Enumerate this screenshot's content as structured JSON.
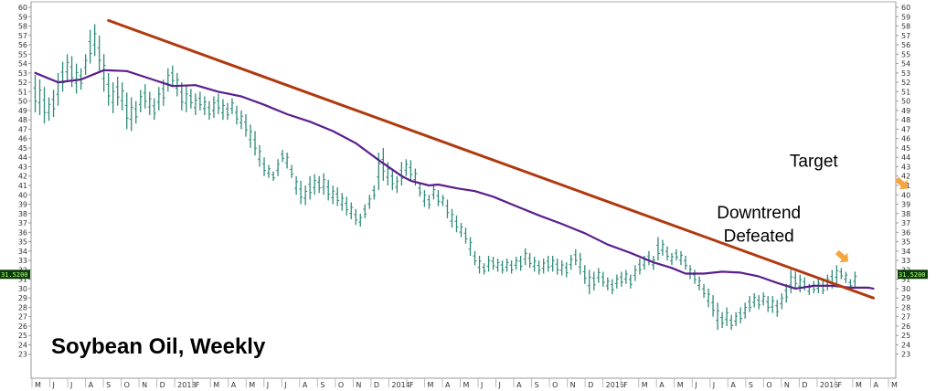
{
  "chart_data": {
    "type": "ohlc-bar",
    "title": "Soybean Oil, Weekly",
    "ylim": [
      22,
      60
    ],
    "yticks": [
      23,
      24,
      25,
      26,
      27,
      28,
      29,
      30,
      31,
      32,
      33,
      34,
      35,
      36,
      37,
      38,
      39,
      40,
      41,
      42,
      43,
      44,
      45,
      46,
      47,
      48,
      49,
      50,
      51,
      52,
      53,
      54,
      55,
      56,
      57,
      58,
      59,
      60
    ],
    "grid": false,
    "last_price_label": "31.5200",
    "last_price": 31.52,
    "x_ticks": [
      "M",
      "J",
      "J",
      "A",
      "S",
      "O",
      "N",
      "D",
      "2013",
      "F",
      "M",
      "A",
      "M",
      "J",
      "J",
      "A",
      "S",
      "O",
      "N",
      "D",
      "2014",
      "F",
      "M",
      "A",
      "M",
      "J",
      "J",
      "A",
      "S",
      "O",
      "N",
      "D",
      "2015",
      "F",
      "M",
      "A",
      "M",
      "J",
      "J",
      "A",
      "S",
      "O",
      "N",
      "D",
      "2016",
      "F",
      "M",
      "A",
      "M"
    ],
    "weekly_bars": [
      [
        52.8,
        48.8
      ],
      [
        52.3,
        48.5
      ],
      [
        51.5,
        47.6
      ],
      [
        50.4,
        47.9
      ],
      [
        51.2,
        48.3
      ],
      [
        53.0,
        49.5
      ],
      [
        54.2,
        51.0
      ],
      [
        55.0,
        52.1
      ],
      [
        54.8,
        51.5
      ],
      [
        54.0,
        50.8
      ],
      [
        53.5,
        51.2
      ],
      [
        55.0,
        52.8
      ],
      [
        57.6,
        54.0
      ],
      [
        58.2,
        54.8
      ],
      [
        57.0,
        53.2
      ],
      [
        55.0,
        51.0
      ],
      [
        53.0,
        49.5
      ],
      [
        52.0,
        48.7
      ],
      [
        52.6,
        49.5
      ],
      [
        52.0,
        49.0
      ],
      [
        50.9,
        47.0
      ],
      [
        50.4,
        46.8
      ],
      [
        50.0,
        47.6
      ],
      [
        51.2,
        48.8
      ],
      [
        51.8,
        49.2
      ],
      [
        51.0,
        48.5
      ],
      [
        50.3,
        48.0
      ],
      [
        51.5,
        49.0
      ],
      [
        52.3,
        49.5
      ],
      [
        53.5,
        51.0
      ],
      [
        53.8,
        51.5
      ],
      [
        53.0,
        50.5
      ],
      [
        52.0,
        49.0
      ],
      [
        51.6,
        48.8
      ],
      [
        51.3,
        49.2
      ],
      [
        50.8,
        48.5
      ],
      [
        51.0,
        49.0
      ],
      [
        50.5,
        48.5
      ],
      [
        50.0,
        48.0
      ],
      [
        50.5,
        48.2
      ],
      [
        50.8,
        48.6
      ],
      [
        50.2,
        48.0
      ],
      [
        49.8,
        48.0
      ],
      [
        50.3,
        48.6
      ],
      [
        49.5,
        47.5
      ],
      [
        49.0,
        47.0
      ],
      [
        48.6,
        46.2
      ],
      [
        47.5,
        45.0
      ],
      [
        46.8,
        44.2
      ],
      [
        45.3,
        43.0
      ],
      [
        44.0,
        42.0
      ],
      [
        43.2,
        41.8
      ],
      [
        42.5,
        41.5
      ],
      [
        43.8,
        42.0
      ],
      [
        44.8,
        43.5
      ],
      [
        44.5,
        42.8
      ],
      [
        43.2,
        41.8
      ],
      [
        42.0,
        40.0
      ],
      [
        41.5,
        39.0
      ],
      [
        41.0,
        38.9
      ],
      [
        42.0,
        39.5
      ],
      [
        42.2,
        40.0
      ],
      [
        42.0,
        40.2
      ],
      [
        42.3,
        40.0
      ],
      [
        41.6,
        39.4
      ],
      [
        41.0,
        39.0
      ],
      [
        40.8,
        38.8
      ],
      [
        40.2,
        38.3
      ],
      [
        39.8,
        37.8
      ],
      [
        39.2,
        37.4
      ],
      [
        38.5,
        36.8
      ],
      [
        38.0,
        36.6
      ],
      [
        39.0,
        37.5
      ],
      [
        40.0,
        38.5
      ],
      [
        41.0,
        39.5
      ],
      [
        44.5,
        40.5
      ],
      [
        45.0,
        41.5
      ],
      [
        43.5,
        41.0
      ],
      [
        42.8,
        40.5
      ],
      [
        42.0,
        40.2
      ],
      [
        43.5,
        41.0
      ],
      [
        43.8,
        42.0
      ],
      [
        43.7,
        41.5
      ],
      [
        42.8,
        41.0
      ],
      [
        41.2,
        39.8
      ],
      [
        40.5,
        38.7
      ],
      [
        40.0,
        38.5
      ],
      [
        41.0,
        39.5
      ],
      [
        40.5,
        38.8
      ],
      [
        40.0,
        38.8
      ],
      [
        39.5,
        37.5
      ],
      [
        38.5,
        36.5
      ],
      [
        37.8,
        36.0
      ],
      [
        37.0,
        35.5
      ],
      [
        36.5,
        34.8
      ],
      [
        35.5,
        33.5
      ],
      [
        34.0,
        32.5
      ],
      [
        33.5,
        31.6
      ],
      [
        32.7,
        31.5
      ],
      [
        33.5,
        31.8
      ],
      [
        33.4,
        32.0
      ],
      [
        33.2,
        31.8
      ],
      [
        33.0,
        31.6
      ],
      [
        33.2,
        31.8
      ],
      [
        33.0,
        31.6
      ],
      [
        33.4,
        32.0
      ],
      [
        33.5,
        31.9
      ],
      [
        34.3,
        32.5
      ],
      [
        33.8,
        32.2
      ],
      [
        33.4,
        31.8
      ],
      [
        33.0,
        31.5
      ],
      [
        33.2,
        31.6
      ],
      [
        33.5,
        31.8
      ],
      [
        33.5,
        31.8
      ],
      [
        33.2,
        31.5
      ],
      [
        33.0,
        31.4
      ],
      [
        32.8,
        31.2
      ],
      [
        33.6,
        32.0
      ],
      [
        34.2,
        32.5
      ],
      [
        33.8,
        31.5
      ],
      [
        32.5,
        30.5
      ],
      [
        32.0,
        29.4
      ],
      [
        31.8,
        29.8
      ],
      [
        32.2,
        30.6
      ],
      [
        31.8,
        30.2
      ],
      [
        31.2,
        29.8
      ],
      [
        31.0,
        29.4
      ],
      [
        31.5,
        30.0
      ],
      [
        31.8,
        30.2
      ],
      [
        32.0,
        30.5
      ],
      [
        31.5,
        30.0
      ],
      [
        32.5,
        30.8
      ],
      [
        33.2,
        31.5
      ],
      [
        33.5,
        32.0
      ],
      [
        34.0,
        32.5
      ],
      [
        33.5,
        32.0
      ],
      [
        35.5,
        33.0
      ],
      [
        35.2,
        33.5
      ],
      [
        34.5,
        33.0
      ],
      [
        33.8,
        32.5
      ],
      [
        34.2,
        33.0
      ],
      [
        34.0,
        32.5
      ],
      [
        33.5,
        32.0
      ],
      [
        32.5,
        31.0
      ],
      [
        32.0,
        30.5
      ],
      [
        31.3,
        29.8
      ],
      [
        30.5,
        29.0
      ],
      [
        30.0,
        28.0
      ],
      [
        29.3,
        27.0
      ],
      [
        28.5,
        25.6
      ],
      [
        27.5,
        25.8
      ],
      [
        28.0,
        26.0
      ],
      [
        27.2,
        25.6
      ],
      [
        27.5,
        26.0
      ],
      [
        28.0,
        26.3
      ],
      [
        28.5,
        26.8
      ],
      [
        29.2,
        27.5
      ],
      [
        29.5,
        28.0
      ],
      [
        29.3,
        27.8
      ],
      [
        29.6,
        28.2
      ],
      [
        29.2,
        27.5
      ],
      [
        29.2,
        27.4
      ],
      [
        28.8,
        27.0
      ],
      [
        29.5,
        27.8
      ],
      [
        30.5,
        28.5
      ],
      [
        32.0,
        29.5
      ],
      [
        31.8,
        30.0
      ],
      [
        31.5,
        29.6
      ],
      [
        31.2,
        29.8
      ],
      [
        30.5,
        29.3
      ],
      [
        30.8,
        29.5
      ],
      [
        31.0,
        29.5
      ],
      [
        30.8,
        29.4
      ],
      [
        31.5,
        29.8
      ],
      [
        32.0,
        30.0
      ],
      [
        32.5,
        30.5
      ],
      [
        32.2,
        31.0
      ],
      [
        31.8,
        30.6
      ],
      [
        31.0,
        30.0
      ],
      [
        31.8,
        30.2
      ]
    ],
    "series": [
      {
        "name": "",
        "type": "moving-average",
        "color": "#5a1e8c",
        "points": [
          [
            0,
            53.0
          ],
          [
            5,
            52.0
          ],
          [
            10,
            52.3
          ],
          [
            15,
            53.3
          ],
          [
            20,
            53.2
          ],
          [
            25,
            52.4
          ],
          [
            30,
            51.6
          ],
          [
            35,
            51.7
          ],
          [
            40,
            51.0
          ],
          [
            45,
            50.5
          ],
          [
            50,
            49.6
          ],
          [
            55,
            48.6
          ],
          [
            60,
            47.8
          ],
          [
            65,
            46.8
          ],
          [
            70,
            45.5
          ],
          [
            75,
            43.7
          ],
          [
            80,
            42.0
          ],
          [
            82,
            41.5
          ],
          [
            86,
            41.0
          ],
          [
            88,
            41.1
          ],
          [
            92,
            40.7
          ],
          [
            96,
            40.4
          ],
          [
            100,
            39.8
          ],
          [
            105,
            38.8
          ],
          [
            110,
            37.8
          ],
          [
            115,
            36.9
          ],
          [
            120,
            35.9
          ],
          [
            125,
            34.7
          ],
          [
            130,
            33.8
          ],
          [
            135,
            32.8
          ],
          [
            139,
            32.2
          ],
          [
            142,
            31.6
          ],
          [
            146,
            31.6
          ],
          [
            150,
            31.8
          ],
          [
            154,
            31.7
          ],
          [
            158,
            31.3
          ],
          [
            162,
            30.6
          ],
          [
            166,
            30.0
          ],
          [
            170,
            30.3
          ],
          [
            174,
            30.3
          ],
          [
            178,
            30.1
          ],
          [
            182,
            30.1
          ],
          [
            183,
            30.0
          ]
        ]
      },
      {
        "name": "",
        "type": "trendline",
        "color": "#b03a10",
        "points": [
          [
            16,
            58.6
          ],
          [
            183,
            29.0
          ]
        ]
      }
    ],
    "annotations": [
      {
        "text": "Downtrend",
        "at": [
          158,
          37.5
        ]
      },
      {
        "text": "Defeated",
        "at": [
          158,
          35.0
        ]
      },
      {
        "text": "Target",
        "at": [
          170,
          43.0
        ]
      }
    ],
    "arrows": [
      {
        "color": "#f5a442",
        "at": [
          176,
          33.5
        ]
      },
      {
        "color": "#f5a442",
        "at": [
          189,
          41.3
        ]
      }
    ]
  }
}
